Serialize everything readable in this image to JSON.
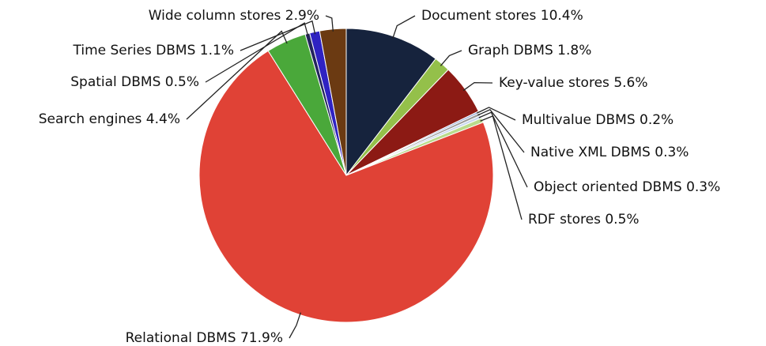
{
  "chart_data": {
    "type": "pie",
    "categories": [
      "Document stores",
      "Graph DBMS",
      "Key-value stores",
      "Multivalue DBMS",
      "Native XML DBMS",
      "Object oriented DBMS",
      "RDF stores",
      "Relational DBMS",
      "Search engines",
      "Spatial DBMS",
      "Time Series DBMS",
      "Wide column stores"
    ],
    "values": [
      10.4,
      1.8,
      5.6,
      0.2,
      0.3,
      0.3,
      0.5,
      71.9,
      4.4,
      0.5,
      1.1,
      2.9
    ],
    "value_labels": [
      "10.4%",
      "1.8%",
      "5.6%",
      "0.2%",
      "0.3%",
      "0.3%",
      "0.5%",
      "71.9%",
      "4.4%",
      "0.5%",
      "1.1%",
      "2.9%"
    ],
    "colors": [
      "#16233d",
      "#94c04a",
      "#8c1a14",
      "#8ea3d6",
      "#9a9a9a",
      "#c9d7f0",
      "#b9db8c",
      "#e04236",
      "#4aa83a",
      "#23235e",
      "#2f22c2",
      "#6b3a12"
    ]
  }
}
